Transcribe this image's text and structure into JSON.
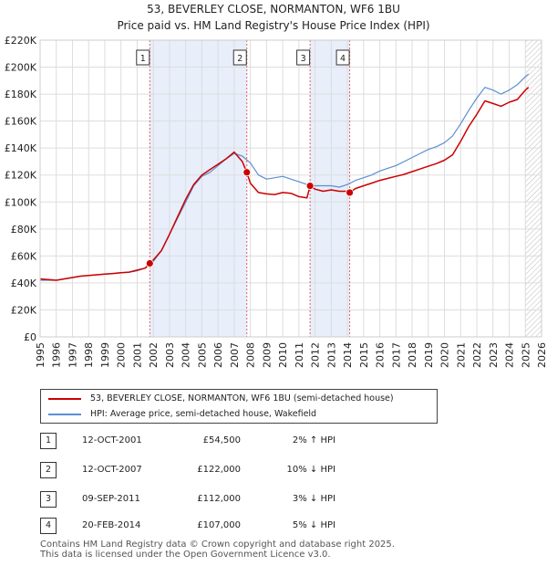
{
  "title": "53, BEVERLEY CLOSE, NORMANTON, WF6 1BU",
  "subtitle": "Price paid vs. HM Land Registry's House Price Index (HPI)",
  "colors": {
    "property": "#cc0000",
    "hpi": "#5b8fd0",
    "band": "#e8eefa",
    "vline": "#e06060"
  },
  "chart_data": {
    "type": "line",
    "title": "53, BEVERLEY CLOSE, NORMANTON, WF6 1BU",
    "subtitle": "Price paid vs. HM Land Registry's House Price Index (HPI)",
    "xlabel": "",
    "ylabel": "",
    "xlim": [
      1995,
      2026
    ],
    "ylim": [
      0,
      220000
    ],
    "grid": true,
    "yticks": [
      0,
      20000,
      40000,
      60000,
      80000,
      100000,
      120000,
      140000,
      160000,
      180000,
      200000,
      220000
    ],
    "ytick_labels": [
      "£0",
      "£20K",
      "£40K",
      "£60K",
      "£80K",
      "£100K",
      "£120K",
      "£140K",
      "£160K",
      "£180K",
      "£200K",
      "£220K"
    ],
    "xticks": [
      1995,
      1996,
      1997,
      1998,
      1999,
      2000,
      2001,
      2002,
      2003,
      2004,
      2005,
      2006,
      2007,
      2008,
      2009,
      2010,
      2011,
      2012,
      2013,
      2014,
      2015,
      2016,
      2017,
      2018,
      2019,
      2020,
      2021,
      2022,
      2023,
      2024,
      2025,
      2026
    ],
    "xtick_labels": [
      "1995",
      "1996",
      "1997",
      "1998",
      "1999",
      "2000",
      "2001",
      "2002",
      "2003",
      "2004",
      "2005",
      "2006",
      "2007",
      "2008",
      "2009",
      "2010",
      "2011",
      "2012",
      "2013",
      "2014",
      "2015",
      "2016",
      "2017",
      "2018",
      "2019",
      "2020",
      "2021",
      "2022",
      "2023",
      "2024",
      "2025",
      "2026"
    ],
    "future_from": 2025.0,
    "shaded_ranges": [
      [
        2001.78,
        2007.78
      ],
      [
        2011.69,
        2014.14
      ]
    ],
    "series": [
      {
        "name": "53, BEVERLEY CLOSE, NORMANTON, WF6 1BU (semi-detached house)",
        "x": [
          1995.0,
          1995.5,
          1996.0,
          1996.5,
          1997.0,
          1997.5,
          1998.0,
          1998.5,
          1999.0,
          1999.5,
          2000.0,
          2000.5,
          2001.0,
          2001.5,
          2001.78,
          2002.0,
          2002.5,
          2003.0,
          2003.5,
          2004.0,
          2004.5,
          2005.0,
          2005.5,
          2006.0,
          2006.5,
          2007.0,
          2007.5,
          2007.78,
          2008.0,
          2008.5,
          2009.0,
          2009.5,
          2010.0,
          2010.5,
          2011.0,
          2011.5,
          2011.69,
          2012.0,
          2012.5,
          2013.0,
          2013.5,
          2014.0,
          2014.14,
          2014.5,
          2015.0,
          2015.5,
          2016.0,
          2016.5,
          2017.0,
          2017.5,
          2018.0,
          2018.5,
          2019.0,
          2019.5,
          2020.0,
          2020.5,
          2021.0,
          2021.5,
          2022.0,
          2022.5,
          2023.0,
          2023.5,
          2024.0,
          2024.5,
          2025.0,
          2025.2
        ],
        "values": [
          43000,
          42500,
          42000,
          43000,
          44000,
          45000,
          45500,
          46000,
          46500,
          47000,
          47500,
          48000,
          49500,
          51000,
          54500,
          57000,
          64000,
          76000,
          89000,
          102000,
          113000,
          120000,
          124000,
          128000,
          132000,
          137000,
          130000,
          122000,
          114000,
          107000,
          106000,
          105500,
          107000,
          106500,
          104000,
          103000,
          112000,
          109500,
          108000,
          109000,
          108000,
          108000,
          107000,
          110000,
          112000,
          114000,
          116000,
          117500,
          119000,
          120500,
          122500,
          124500,
          126500,
          128500,
          131000,
          135000,
          145000,
          156000,
          165000,
          175000,
          173000,
          171000,
          174000,
          176000,
          183000,
          185000
        ]
      },
      {
        "name": "HPI: Average price, semi-detached house, Wakefield",
        "x": [
          1995.0,
          1995.5,
          1996.0,
          1996.5,
          1997.0,
          1997.5,
          1998.0,
          1998.5,
          1999.0,
          1999.5,
          2000.0,
          2000.5,
          2001.0,
          2001.5,
          2002.0,
          2002.5,
          2003.0,
          2003.5,
          2004.0,
          2004.5,
          2005.0,
          2005.5,
          2006.0,
          2006.5,
          2007.0,
          2007.5,
          2008.0,
          2008.5,
          2009.0,
          2009.5,
          2010.0,
          2010.5,
          2011.0,
          2011.5,
          2012.0,
          2012.5,
          2013.0,
          2013.5,
          2014.0,
          2014.5,
          2015.0,
          2015.5,
          2016.0,
          2016.5,
          2017.0,
          2017.5,
          2018.0,
          2018.5,
          2019.0,
          2019.5,
          2020.0,
          2020.5,
          2021.0,
          2021.5,
          2022.0,
          2022.5,
          2023.0,
          2023.5,
          2024.0,
          2024.5,
          2025.0,
          2025.2
        ],
        "values": [
          42000,
          42000,
          42000,
          43000,
          44000,
          45000,
          45500,
          46000,
          46500,
          47000,
          47500,
          48000,
          49000,
          51000,
          56000,
          64000,
          76000,
          88000,
          100000,
          112000,
          119000,
          122000,
          127000,
          132000,
          136000,
          134000,
          129000,
          120000,
          117000,
          118000,
          119000,
          117000,
          115000,
          113000,
          112000,
          112000,
          112000,
          111000,
          113000,
          116000,
          118000,
          120000,
          123000,
          125000,
          127000,
          130000,
          133000,
          136000,
          139000,
          141000,
          144000,
          149000,
          158000,
          168000,
          177000,
          185000,
          183000,
          180000,
          183000,
          187000,
          193000,
          195000
        ]
      }
    ],
    "sales": [
      {
        "label": "1",
        "x": 2001.78,
        "value": 54500
      },
      {
        "label": "2",
        "x": 2007.78,
        "value": 122000
      },
      {
        "label": "3",
        "x": 2011.69,
        "value": 112000
      },
      {
        "label": "4",
        "x": 2014.14,
        "value": 107000
      }
    ]
  },
  "legend": {
    "items": [
      {
        "label": "53, BEVERLEY CLOSE, NORMANTON, WF6 1BU (semi-detached house)"
      },
      {
        "label": "HPI: Average price, semi-detached house, Wakefield"
      }
    ]
  },
  "transactions": [
    {
      "num": "1",
      "date": "12-OCT-2001",
      "price": "£54,500",
      "hpi": "2% ↑ HPI"
    },
    {
      "num": "2",
      "date": "12-OCT-2007",
      "price": "£122,000",
      "hpi": "10% ↓ HPI"
    },
    {
      "num": "3",
      "date": "09-SEP-2011",
      "price": "£112,000",
      "hpi": "3% ↓ HPI"
    },
    {
      "num": "4",
      "date": "20-FEB-2014",
      "price": "£107,000",
      "hpi": "5% ↓ HPI"
    }
  ],
  "footer": {
    "line1": "Contains HM Land Registry data © Crown copyright and database right 2025.",
    "line2": "This data is licensed under the Open Government Licence v3.0."
  }
}
